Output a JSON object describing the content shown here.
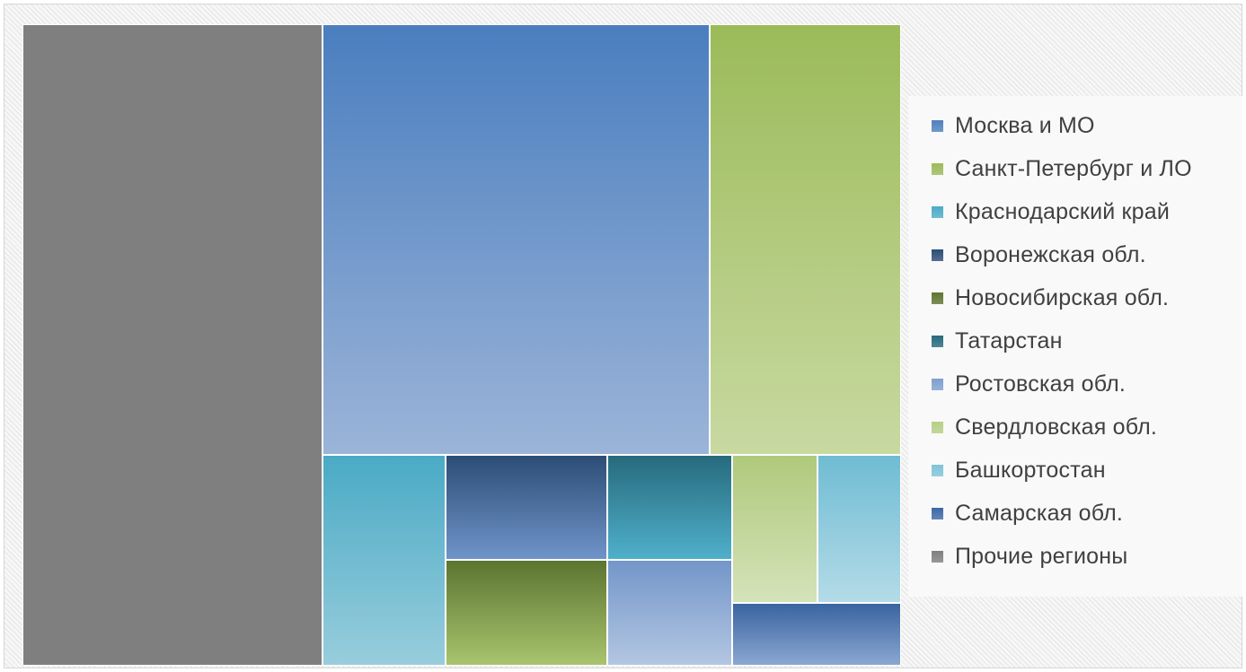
{
  "chart_data": {
    "type": "treemap",
    "title": "",
    "legend_position": "right",
    "items": [
      {
        "name": "Прочие регионы",
        "value": 22.8,
        "color": "#7f7f7f",
        "color_light": "#7f7f7f"
      },
      {
        "name": "Москва и МО",
        "value": 29.3,
        "color": "#4a7ebf",
        "color_light": "#9bb4d8"
      },
      {
        "name": "Санкт-Петербург и ЛО",
        "value": 14.5,
        "color": "#9bbb59",
        "color_light": "#c8d9a1"
      },
      {
        "name": "Краснодарский край",
        "value": 5.3,
        "color": "#4aaac5",
        "color_light": "#98cddc"
      },
      {
        "name": "Воронежская обл.",
        "value": 3.2,
        "color": "#2c4d75",
        "color_light": "#6f94c9"
      },
      {
        "name": "Новосибирская обл.",
        "value": 3.2,
        "color": "#5b7530",
        "color_light": "#a8c46e"
      },
      {
        "name": "Татарстан",
        "value": 2.6,
        "color": "#276a7c",
        "color_light": "#4fb0cb"
      },
      {
        "name": "Ростовская обл.",
        "value": 2.6,
        "color": "#7396c9",
        "color_light": "#b3c6e2"
      },
      {
        "name": "Свердловская обл.",
        "value": 2.0,
        "color": "#afc97c",
        "color_light": "#d5e3b9"
      },
      {
        "name": "Башкортостан",
        "value": 1.9,
        "color": "#6fbcd3",
        "color_light": "#b4dbe7"
      },
      {
        "name": "Самарская обл.",
        "value": 1.5,
        "color": "#3a64a0",
        "color_light": "#8aa7d1"
      }
    ]
  },
  "legend": {
    "items": [
      {
        "label": "Москва и МО",
        "color": "#4f81bd"
      },
      {
        "label": "Санкт-Петербург и ЛО",
        "color": "#9bbb59"
      },
      {
        "label": "Краснодарский край",
        "color": "#4bacc6"
      },
      {
        "label": "Воронежская обл.",
        "color": "#2c4d75"
      },
      {
        "label": "Новосибирская обл.",
        "color": "#5f7530"
      },
      {
        "label": "Татарстан",
        "color": "#276a7c"
      },
      {
        "label": "Ростовская обл.",
        "color": "#7f9fd0"
      },
      {
        "label": "Свердловская обл.",
        "color": "#b5cf86"
      },
      {
        "label": "Башкортостан",
        "color": "#7ec4d8"
      },
      {
        "label": "Самарская обл.",
        "color": "#3d68a6"
      },
      {
        "label": "Прочие регионы",
        "color": "#7f7f7f"
      }
    ]
  }
}
